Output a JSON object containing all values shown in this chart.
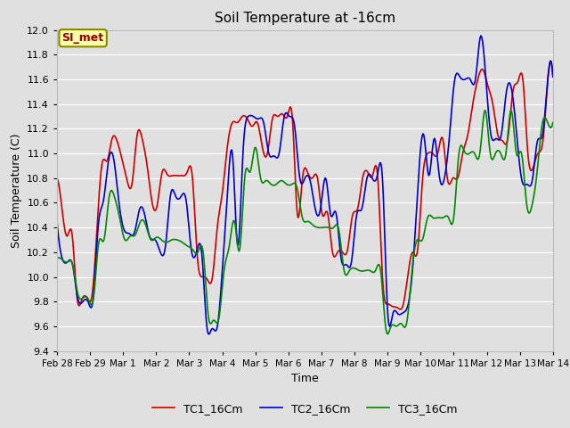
{
  "title": "Soil Temperature at -16cm",
  "xlabel": "Time",
  "ylabel": "Soil Temperature (C)",
  "ylim": [
    9.4,
    12.0
  ],
  "bg_color": "#e0e0e0",
  "line_colors": [
    "#cc0000",
    "#0000cc",
    "#008800"
  ],
  "line_labels": [
    "TC1_16Cm",
    "TC2_16Cm",
    "TC3_16Cm"
  ],
  "annotation_text": "SI_met",
  "annotation_bg": "#ffffaa",
  "annotation_border": "#888800",
  "tick_labels": [
    "Feb 28",
    "Feb 29",
    "Mar 1",
    "Mar 2",
    "Mar 3",
    "Mar 4",
    "Mar 5",
    "Mar 6",
    "Mar 7",
    "Mar 8",
    "Mar 9",
    "Mar 10",
    "Mar 11",
    "Mar 12",
    "Mar 13",
    "Mar 14"
  ],
  "tc1": [
    10.8,
    10.55,
    10.33,
    10.35,
    9.83,
    9.82,
    9.83,
    9.85,
    10.4,
    10.92,
    10.94,
    11.12,
    11.1,
    10.95,
    10.78,
    10.76,
    11.15,
    11.12,
    10.9,
    10.6,
    10.58,
    10.85,
    10.83,
    10.82,
    10.82,
    10.82,
    10.85,
    10.82,
    10.17,
    10.0,
    9.98,
    9.99,
    10.4,
    10.68,
    11.05,
    11.25,
    11.25,
    11.3,
    11.28,
    11.22,
    11.25,
    11.05,
    11.0,
    11.28,
    11.3,
    11.32,
    11.3,
    11.28,
    10.5,
    10.8,
    10.85,
    10.8,
    10.8,
    10.5,
    10.52,
    10.2,
    10.2,
    10.2,
    10.22,
    10.5,
    10.55,
    10.8,
    10.85,
    10.82,
    10.82,
    9.98,
    9.78,
    9.76,
    9.75,
    9.76,
    10.0,
    10.2,
    10.22,
    10.8,
    11.0,
    11.0,
    11.0,
    11.12,
    10.78,
    10.8,
    10.8,
    11.0,
    11.15,
    11.4,
    11.6,
    11.68,
    11.55,
    11.4,
    11.15,
    11.1,
    11.12,
    11.5,
    11.58,
    11.6,
    11.0,
    10.88,
    11.0,
    11.1,
    11.6,
    11.62
  ],
  "tc2": [
    10.45,
    10.15,
    10.12,
    10.1,
    9.83,
    9.8,
    9.8,
    9.82,
    10.42,
    10.62,
    10.95,
    10.95,
    10.6,
    10.38,
    10.35,
    10.36,
    10.55,
    10.5,
    10.32,
    10.3,
    10.2,
    10.25,
    10.67,
    10.65,
    10.65,
    10.62,
    10.22,
    10.2,
    10.2,
    9.6,
    9.58,
    9.59,
    10.05,
    10.68,
    10.98,
    10.25,
    11.0,
    11.3,
    11.3,
    11.28,
    11.25,
    11.0,
    10.98,
    11.0,
    11.3,
    11.3,
    11.22,
    10.8,
    10.8,
    10.78,
    10.55,
    10.55,
    10.8,
    10.5,
    10.52,
    10.15,
    10.1,
    10.12,
    10.5,
    10.55,
    10.8,
    10.8,
    10.82,
    10.8,
    9.72,
    9.7,
    9.7,
    9.71,
    9.78,
    10.15,
    10.82,
    11.15,
    10.82,
    11.12,
    10.82,
    10.8,
    11.15,
    11.6,
    11.62,
    11.6,
    11.6,
    11.6,
    11.95,
    11.62,
    11.15,
    11.12,
    11.15,
    11.5,
    11.52,
    11.15,
    10.78,
    10.75,
    10.78,
    11.1,
    11.15,
    11.6,
    11.62
  ],
  "tc3": [
    10.15,
    10.14,
    10.12,
    10.1,
    9.86,
    9.83,
    9.82,
    9.83,
    10.28,
    10.3,
    10.65,
    10.65,
    10.48,
    10.3,
    10.33,
    10.34,
    10.45,
    10.42,
    10.3,
    10.32,
    10.3,
    10.28,
    10.3,
    10.3,
    10.28,
    10.25,
    10.22,
    10.2,
    10.2,
    9.68,
    9.65,
    9.66,
    10.05,
    10.25,
    10.45,
    10.22,
    10.82,
    10.85,
    11.05,
    10.8,
    10.78,
    10.75,
    10.75,
    10.78,
    10.75,
    10.75,
    10.72,
    10.48,
    10.45,
    10.42,
    10.4,
    10.4,
    10.4,
    10.4,
    10.38,
    10.05,
    10.05,
    10.07,
    10.05,
    10.05,
    10.05,
    10.05,
    10.05,
    9.58,
    9.6,
    9.6,
    9.62,
    9.63,
    10.05,
    10.3,
    10.3,
    10.48,
    10.48,
    10.48,
    10.48,
    10.48,
    10.48,
    11.0,
    11.02,
    11.0,
    11.0,
    11.0,
    11.35,
    11.0,
    11.0,
    11.0,
    11.0,
    11.35,
    11.0,
    11.0,
    10.58,
    10.58,
    10.86,
    11.25,
    11.25,
    11.25
  ]
}
